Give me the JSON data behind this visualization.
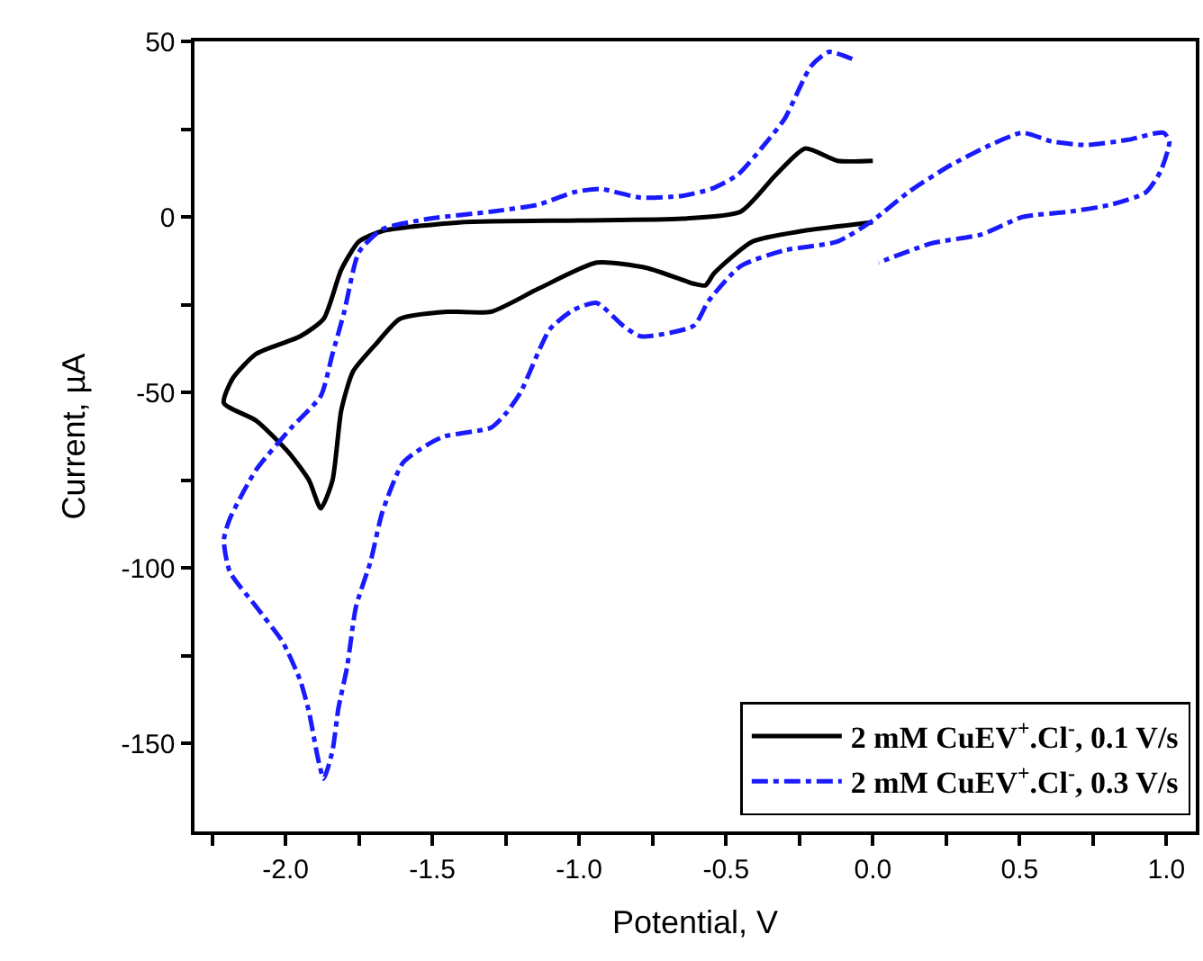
{
  "chart_data": {
    "type": "line",
    "xlabel": "Potential, V",
    "ylabel": "Current, µA",
    "xlim": [
      -2.31,
      1.1
    ],
    "ylim": [
      -175,
      50
    ],
    "xticks": [
      {
        "value": -2.25,
        "label": null
      },
      {
        "value": -2.0,
        "label": "-2.0"
      },
      {
        "value": -1.75,
        "label": null
      },
      {
        "value": -1.5,
        "label": "-1.5"
      },
      {
        "value": -1.25,
        "label": null
      },
      {
        "value": -1.0,
        "label": "-1.0"
      },
      {
        "value": -0.75,
        "label": null
      },
      {
        "value": -0.5,
        "label": "-0.5"
      },
      {
        "value": -0.25,
        "label": null
      },
      {
        "value": 0.0,
        "label": "0.0"
      },
      {
        "value": 0.25,
        "label": null
      },
      {
        "value": 0.5,
        "label": "0.5"
      },
      {
        "value": 0.75,
        "label": null
      },
      {
        "value": 1.0,
        "label": "1.0"
      }
    ],
    "yticks": [
      50,
      {
        "value": 25,
        "label": null
      },
      0,
      {
        "value": -25,
        "label": null
      },
      -50,
      {
        "value": -75,
        "label": null
      },
      -100,
      {
        "value": -125,
        "label": null
      },
      -150
    ],
    "legend": "bottom right",
    "marker": "none",
    "series": [
      {
        "name": "2 mM CuEV$^{+}$.Cl$^{-}$, 0.1 V/s",
        "color": "#000000",
        "line_style": "solid",
        "x": [
          0.0,
          -0.12,
          -0.23,
          -0.33,
          -0.45,
          -0.65,
          -1.0,
          -1.4,
          -1.67,
          -1.75,
          -1.81,
          -1.87,
          -1.95,
          -2.1,
          -2.18,
          -2.21,
          -2.1,
          -1.99,
          -1.92,
          -1.88,
          -1.84,
          -1.81,
          -1.77,
          -1.69,
          -1.61,
          -1.45,
          -1.3,
          -1.14,
          -0.94,
          -0.77,
          -0.61,
          -0.57,
          -0.54,
          -0.41,
          -0.24,
          0.0
        ],
        "values": [
          16,
          16,
          19.5,
          12,
          1.5,
          -0.5,
          -1,
          -1.5,
          -4,
          -7,
          -15,
          -29,
          -34,
          -39,
          -46,
          -53,
          -58,
          -67,
          -75,
          -83,
          -75,
          -55,
          -44,
          -36,
          -29,
          -27,
          -27,
          -20.5,
          -13,
          -14.5,
          -19,
          -19.5,
          -16,
          -7,
          -4,
          -1.5
        ]
      },
      {
        "name": "2 mM CuEV$^{+}$.Cl$^{-}$, 0.3 V/s",
        "color": "#1a1aff",
        "line_style": "dashdot",
        "x": [
          -0.07,
          -0.15,
          -0.21,
          -0.3,
          -0.37,
          -0.46,
          -0.55,
          -0.65,
          -0.79,
          -0.93,
          -1.02,
          -1.14,
          -1.3,
          -1.51,
          -1.67,
          -1.75,
          -1.8,
          -1.84,
          -1.88,
          -1.98,
          -2.1,
          -2.19,
          -2.21,
          -2.19,
          -2.1,
          -2.01,
          -1.95,
          -1.92,
          -1.89,
          -1.87,
          -1.84,
          -1.82,
          -1.79,
          -1.76,
          -1.71,
          -1.67,
          -1.6,
          -1.52,
          -1.46,
          -1.3,
          -1.25,
          -1.2,
          -1.1,
          -1.02,
          -0.94,
          -0.85,
          -0.79,
          -0.61,
          -0.56,
          -0.45,
          -0.3,
          -0.12,
          0.0,
          0.12,
          0.26,
          0.4,
          0.51,
          0.61,
          0.73,
          0.87,
          0.99,
          1.01,
          0.98,
          0.93,
          0.81,
          0.67,
          0.51,
          0.37,
          0.2,
          0.02
        ],
        "values": [
          45,
          47,
          43,
          28,
          20.5,
          12,
          8,
          6,
          5.5,
          8,
          7,
          3.5,
          1.5,
          -0.5,
          -3.5,
          -10,
          -27,
          -39,
          -51,
          -60,
          -72,
          -86,
          -92,
          -101,
          -111,
          -121,
          -132,
          -141,
          -154,
          -160,
          -152,
          -140,
          -128,
          -111,
          -98,
          -84,
          -70,
          -65,
          -62.5,
          -60,
          -56,
          -50,
          -32,
          -26.5,
          -24.5,
          -31,
          -34,
          -31,
          -24,
          -14,
          -9.5,
          -7,
          -1,
          7,
          14.5,
          20.5,
          24,
          21.5,
          20.5,
          22,
          24,
          21.5,
          13,
          7,
          3.5,
          1.5,
          0,
          -5,
          -7.5,
          -13
        ]
      }
    ]
  }
}
